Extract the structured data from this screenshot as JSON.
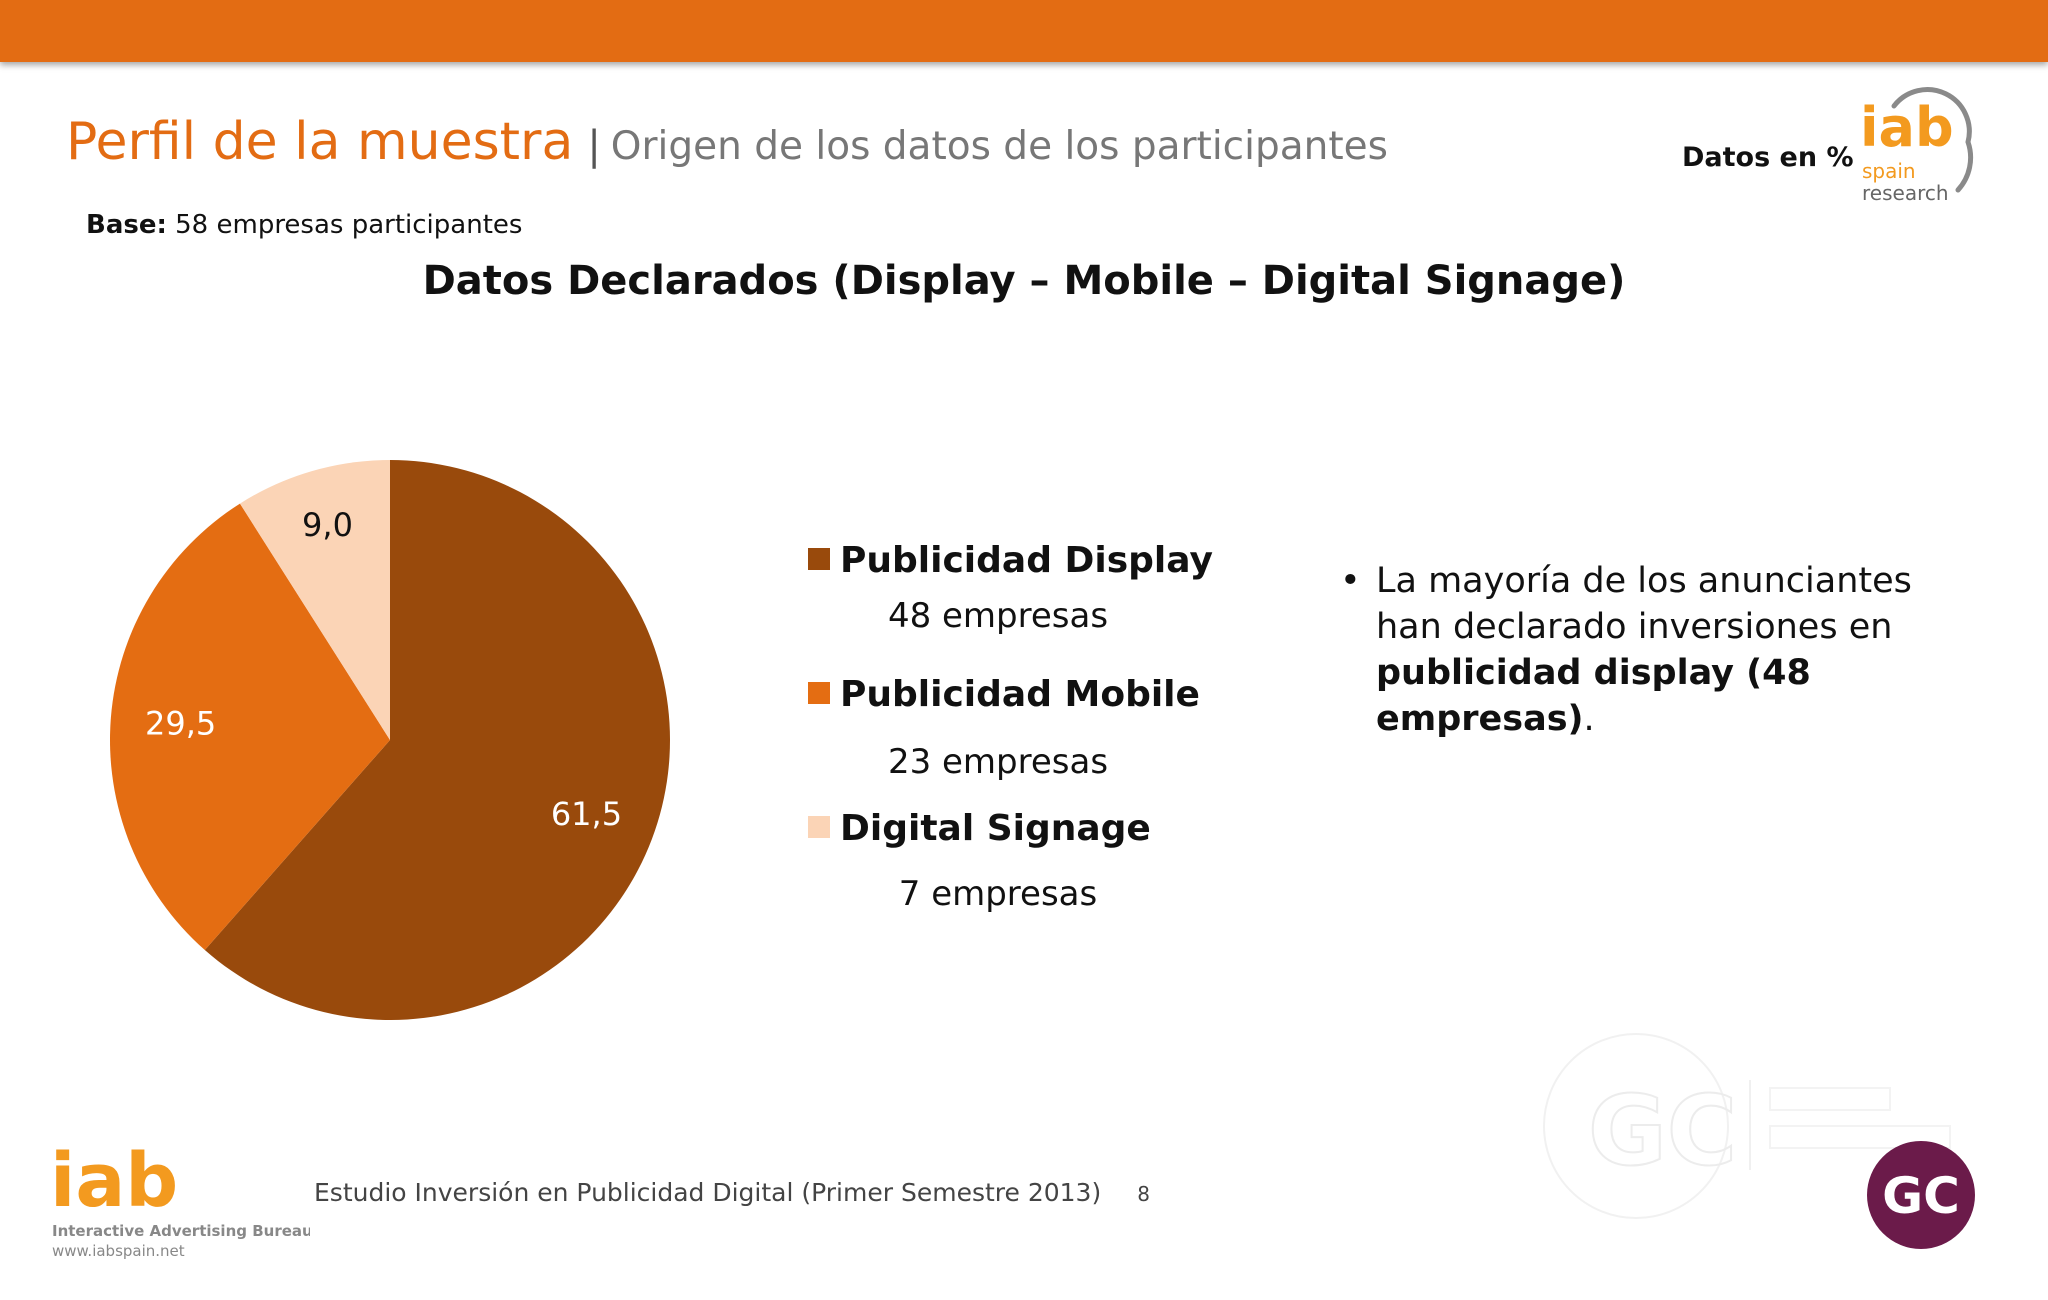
{
  "header": {
    "title_main": "Perfil de la muestra",
    "title_separator": "|",
    "title_sub": "Origen de los datos de los participantes",
    "units_label": "Datos en %",
    "base_label": "Base:",
    "base_text": "58 empresas participantes"
  },
  "logos": {
    "top_iab": "iab",
    "top_spain": "spain",
    "top_research": "research",
    "bottom_iab": "iab",
    "bottom_bureau": "Interactive Advertising Bureau",
    "bottom_url": "www.iabspain.net",
    "gc_badge": "GC",
    "gc_watermark": "GC"
  },
  "chart_data": {
    "type": "pie",
    "title": "Datos Declarados (Display – Mobile – Digital Signage)",
    "categories": [
      "Publicidad Display",
      "Publicidad Mobile",
      "Digital Signage"
    ],
    "values": [
      61.5,
      29.5,
      9.0
    ],
    "value_labels": [
      "61,5",
      "29,5",
      "9,0"
    ],
    "colors": [
      "#994a0c",
      "#e46d12",
      "#fbd4b6"
    ],
    "legend_position": "right",
    "legend_counts": [
      "48 empresas",
      "23 empresas",
      "7 empresas"
    ]
  },
  "note": {
    "bullet": "•",
    "text_plain": "La mayoría de los anunciantes han declarado inversiones en",
    "text_bold": "publicidad display (48 empresas)",
    "text_end": "."
  },
  "footer": {
    "study": "Estudio Inversión en Publicidad Digital (Primer Semestre 2013)",
    "page_number": "8"
  }
}
